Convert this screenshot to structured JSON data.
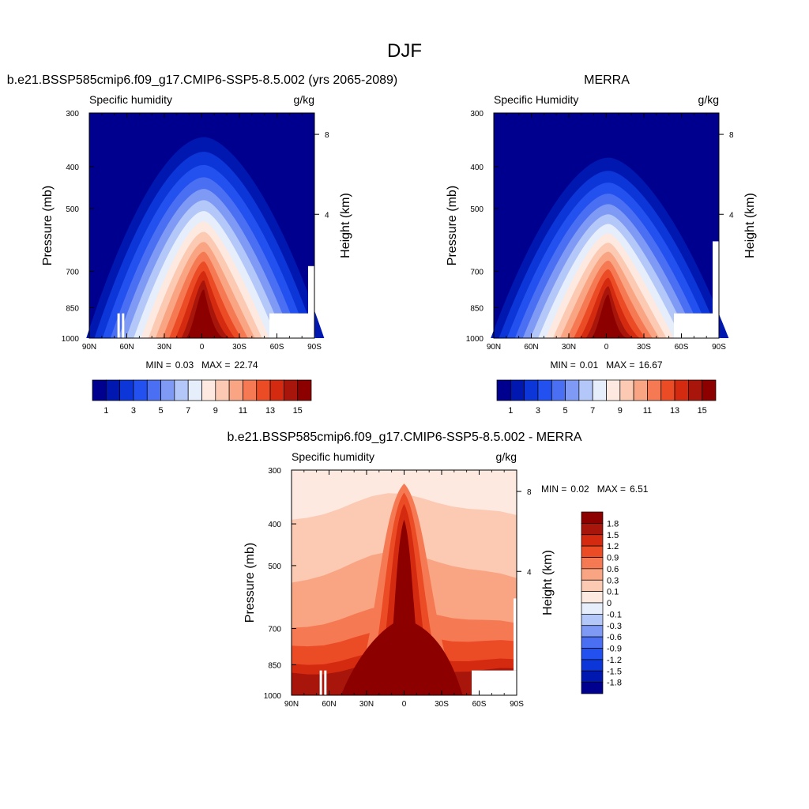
{
  "page_title": "DJF",
  "stats_labels": {
    "min": "MIN =",
    "max": "MAX ="
  },
  "colors": {
    "abs_levels": [
      "#00008f",
      "#0018b0",
      "#0c36d8",
      "#2251f0",
      "#4a6ff2",
      "#7f9af5",
      "#b3c7f8",
      "#e6eefc",
      "#fde9df",
      "#fcc9b3",
      "#f9a583",
      "#f57a54",
      "#ec4c25",
      "#d42a10",
      "#a8150a",
      "#8c0000"
    ],
    "diff_levels": [
      "#00008f",
      "#0018b0",
      "#0c36d8",
      "#2251f0",
      "#4a6ff2",
      "#7f9af5",
      "#b3c7f8",
      "#e6eefc",
      "#fde9df",
      "#fcc9b3",
      "#f9a583",
      "#f57a54",
      "#ec4c25",
      "#d42a10",
      "#a8150a",
      "#8c0000"
    ]
  },
  "chart_data": [
    {
      "type": "heatmap",
      "title": "b.e21.BSSP585cmip6.f09_g17.CMIP6-SSP5-8.5.002 (yrs 2065-2089)",
      "left_string": "Specific humidity",
      "right_string": "g/kg",
      "xlabel": "",
      "ylabel": "Pressure (mb)",
      "y2label": "Height (km)",
      "x_ticks": [
        "90N",
        "60N",
        "30N",
        "0",
        "30S",
        "60S",
        "90S"
      ],
      "y_ticks": [
        "300",
        "400",
        "500",
        "700",
        "850",
        "1000"
      ],
      "y2_ticks": [
        "8",
        "4"
      ],
      "ylim": [
        1000,
        300
      ],
      "min": "0.03",
      "max": "22.74",
      "colorbar_labels": [
        "1",
        "3",
        "5",
        "7",
        "9",
        "11",
        "13",
        "15"
      ]
    },
    {
      "type": "heatmap",
      "title": "MERRA",
      "left_string": "Specific Humidity",
      "right_string": "g/kg",
      "xlabel": "",
      "ylabel": "Pressure (mb)",
      "y2label": "Height (km)",
      "x_ticks": [
        "90N",
        "60N",
        "30N",
        "0",
        "30S",
        "60S",
        "90S"
      ],
      "y_ticks": [
        "300",
        "400",
        "500",
        "700",
        "850",
        "1000"
      ],
      "y2_ticks": [
        "8",
        "4"
      ],
      "ylim": [
        1000,
        300
      ],
      "min": "0.01",
      "max": "16.67",
      "colorbar_labels": [
        "1",
        "3",
        "5",
        "7",
        "9",
        "11",
        "13",
        "15"
      ]
    },
    {
      "type": "heatmap",
      "title": "b.e21.BSSP585cmip6.f09_g17.CMIP6-SSP5-8.5.002 - MERRA",
      "left_string": "Specific humidity",
      "right_string": "g/kg",
      "xlabel": "",
      "ylabel": "Pressure (mb)",
      "y2label": "Height (km)",
      "x_ticks": [
        "90N",
        "60N",
        "30N",
        "0",
        "30S",
        "60S",
        "90S"
      ],
      "y_ticks": [
        "300",
        "400",
        "500",
        "700",
        "850",
        "1000"
      ],
      "y2_ticks": [
        "8",
        "4"
      ],
      "ylim": [
        1000,
        300
      ],
      "min": "0.02",
      "max": "6.51",
      "colorbar_labels": [
        "1.8",
        "1.5",
        "1.2",
        "0.9",
        "0.6",
        "0.3",
        "0.1",
        "0",
        "-0.1",
        "-0.3",
        "-0.6",
        "-0.9",
        "-1.2",
        "-1.5",
        "-1.8"
      ]
    }
  ]
}
